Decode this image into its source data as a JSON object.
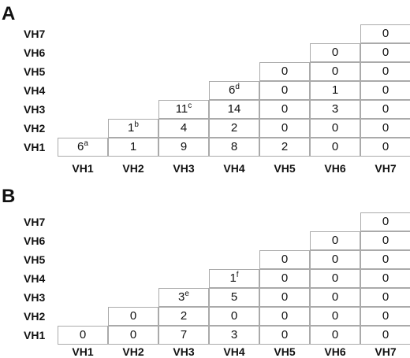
{
  "panels": [
    {
      "label": "A",
      "row_labels": [
        "VH7",
        "VH6",
        "VH5",
        "VH4",
        "VH3",
        "VH2",
        "VH1"
      ],
      "col_labels": [
        "VH1",
        "VH2",
        "VH3",
        "VH4",
        "VH5",
        "VH6",
        "VH7"
      ],
      "rows": [
        [
          {
            "v": "6",
            "s": "a"
          },
          {
            "v": "1"
          },
          {
            "v": "9"
          },
          {
            "v": "8"
          },
          {
            "v": "2"
          },
          {
            "v": "0"
          },
          {
            "v": "0"
          }
        ],
        [
          {
            "v": "1",
            "s": "b"
          },
          {
            "v": "4"
          },
          {
            "v": "2"
          },
          {
            "v": "0"
          },
          {
            "v": "0"
          },
          {
            "v": "0"
          }
        ],
        [
          {
            "v": "11",
            "s": "c"
          },
          {
            "v": "14"
          },
          {
            "v": "0"
          },
          {
            "v": "3"
          },
          {
            "v": "0"
          }
        ],
        [
          {
            "v": "6",
            "s": "d"
          },
          {
            "v": "0"
          },
          {
            "v": "1"
          },
          {
            "v": "0"
          }
        ],
        [
          {
            "v": "0"
          },
          {
            "v": "0"
          },
          {
            "v": "0"
          }
        ],
        [
          {
            "v": "0"
          },
          {
            "v": "0"
          }
        ],
        [
          {
            "v": "0"
          }
        ]
      ]
    },
    {
      "label": "B",
      "row_labels": [
        "VH7",
        "VH6",
        "VH5",
        "VH4",
        "VH3",
        "VH2",
        "VH1"
      ],
      "col_labels": [
        "VH1",
        "VH2",
        "VH3",
        "VH4",
        "VH5",
        "VH6",
        "VH7"
      ],
      "rows": [
        [
          {
            "v": "0"
          },
          {
            "v": "0"
          },
          {
            "v": "7"
          },
          {
            "v": "3"
          },
          {
            "v": "0"
          },
          {
            "v": "0"
          },
          {
            "v": "0"
          }
        ],
        [
          {
            "v": "0"
          },
          {
            "v": "2"
          },
          {
            "v": "0"
          },
          {
            "v": "0"
          },
          {
            "v": "0"
          },
          {
            "v": "0"
          }
        ],
        [
          {
            "v": "3",
            "s": "e"
          },
          {
            "v": "5"
          },
          {
            "v": "0"
          },
          {
            "v": "0"
          },
          {
            "v": "0"
          }
        ],
        [
          {
            "v": "1",
            "s": "f"
          },
          {
            "v": "0"
          },
          {
            "v": "0"
          },
          {
            "v": "0"
          }
        ],
        [
          {
            "v": "0"
          },
          {
            "v": "0"
          },
          {
            "v": "0"
          }
        ],
        [
          {
            "v": "0"
          },
          {
            "v": "0"
          }
        ],
        [
          {
            "v": "0"
          }
        ]
      ]
    }
  ]
}
